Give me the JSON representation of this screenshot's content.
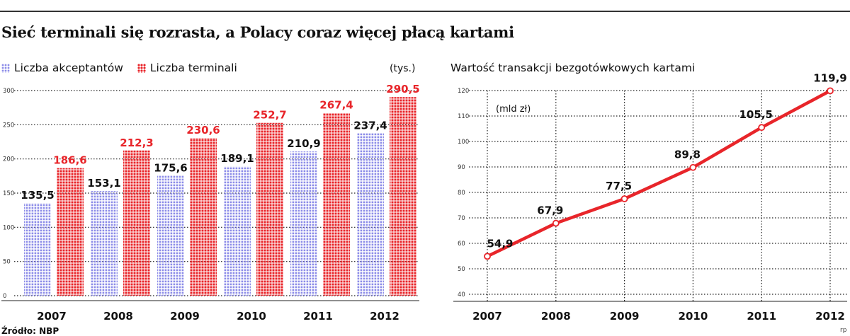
{
  "headline": "Sieć terminali się rozrasta, a Polacy coraz więcej płacą kartami",
  "source": "Źródło: NBP",
  "corner_mark": "rp",
  "colors": {
    "accepting": "#8c8ce8",
    "terminals": "#e8252a",
    "line": "#e8252a"
  },
  "chart_data": [
    {
      "type": "bar",
      "unit": "(tys.)",
      "categories": [
        "2007",
        "2008",
        "2009",
        "2010",
        "2011",
        "2012"
      ],
      "series": [
        {
          "name": "Liczba akceptantów",
          "values": [
            135.5,
            153.1,
            175.6,
            189.1,
            210.9,
            237.4
          ],
          "labels": [
            "135,5",
            "153,1",
            "175,6",
            "189,1",
            "210,9",
            "237,4"
          ]
        },
        {
          "name": "Liczba terminali",
          "values": [
            186.6,
            212.3,
            230.6,
            252.7,
            267.4,
            290.5
          ],
          "labels": [
            "186,6",
            "212,3",
            "230,6",
            "252,7",
            "267,4",
            "290,5"
          ]
        }
      ],
      "yticks": [
        "0",
        "50",
        "100",
        "150",
        "200",
        "250",
        "300"
      ],
      "ylim": [
        0,
        300
      ],
      "grid": true,
      "legend_position": "top-left"
    },
    {
      "type": "line",
      "title": "Wartość transakcji bezgotówkowych kartami",
      "unit": "(mld zł)",
      "x": [
        "2007",
        "2008",
        "2009",
        "2010",
        "2011",
        "2012"
      ],
      "y": [
        54.9,
        67.9,
        77.5,
        89.8,
        105.5,
        119.9
      ],
      "labels": [
        "54,9",
        "67,9",
        "77,5",
        "89,8",
        "105,5",
        "119,9"
      ],
      "yticks": [
        "40",
        "50",
        "60",
        "70",
        "80",
        "90",
        "100",
        "110",
        "120"
      ],
      "ylim": [
        40,
        120
      ],
      "grid": true
    }
  ]
}
